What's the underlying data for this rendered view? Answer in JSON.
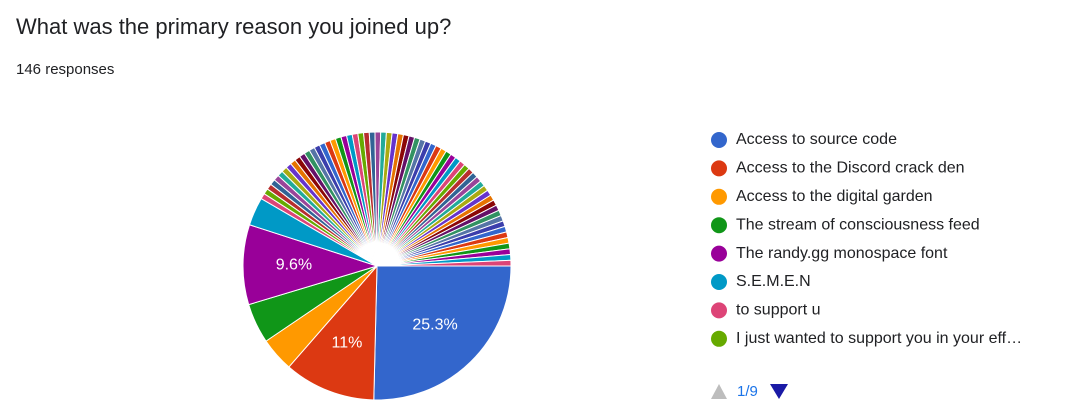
{
  "chart_data": {
    "type": "pie",
    "title": "What was the primary reason you joined up?",
    "subtitle": "146 responses",
    "categories": [
      "Access to source code",
      "Access to the Discord crack den",
      "Access to the digital garden",
      "The stream of consciousness feed",
      "The randy.gg monospace font",
      "S.E.M.E.N",
      "to support u",
      "I just wanted to support you in your eff…",
      null,
      null,
      null,
      null,
      null,
      null,
      null,
      null,
      null,
      null,
      null,
      null,
      null,
      null,
      null,
      null,
      null,
      null,
      null,
      null,
      null,
      null,
      null,
      null,
      null,
      null,
      null,
      null,
      null,
      null,
      null,
      null,
      null,
      null,
      null,
      null,
      null,
      null,
      null,
      null,
      null,
      null,
      null,
      null,
      null,
      null,
      null,
      null,
      null,
      null,
      null,
      null,
      null,
      null,
      null,
      null,
      null,
      null,
      null
    ],
    "values": [
      25.3,
      11,
      4.1,
      4.8,
      9.6,
      3.4,
      0.68,
      0.68,
      0.68,
      0.68,
      0.68,
      0.68,
      0.68,
      0.68,
      0.68,
      0.68,
      0.68,
      0.68,
      0.68,
      0.68,
      0.68,
      0.68,
      0.68,
      0.68,
      0.68,
      0.68,
      0.68,
      0.68,
      0.68,
      0.68,
      0.68,
      0.68,
      0.68,
      0.68,
      0.68,
      0.68,
      0.68,
      0.68,
      0.68,
      0.68,
      0.68,
      0.68,
      0.68,
      0.68,
      0.68,
      0.68,
      0.68,
      0.68,
      0.68,
      0.68,
      0.68,
      0.68,
      0.68,
      0.68,
      0.68,
      0.68,
      0.68,
      0.68,
      0.68,
      0.68,
      0.68,
      0.68,
      0.68,
      0.68,
      0.68,
      0.68,
      0.68
    ],
    "value_labels": [
      "25.3%",
      "11%",
      null,
      null,
      "9.6%",
      null,
      null,
      null,
      null,
      null,
      null,
      null,
      null,
      null,
      null,
      null,
      null,
      null,
      null,
      null,
      null,
      null,
      null,
      null,
      null,
      null,
      null,
      null,
      null,
      null,
      null,
      null,
      null,
      null,
      null,
      null,
      null,
      null,
      null,
      null,
      null,
      null,
      null,
      null,
      null,
      null,
      null,
      null,
      null,
      null,
      null,
      null,
      null,
      null,
      null,
      null,
      null,
      null,
      null,
      null,
      null,
      null,
      null,
      null,
      null,
      null,
      null
    ],
    "colors": [
      "#3366cc",
      "#dc3912",
      "#ff9900",
      "#109618",
      "#990099",
      "#0099c6",
      "#dd4477",
      "#66aa00",
      "#b82e2e",
      "#316395",
      "#994499",
      "#22aa99",
      "#aaaa11",
      "#6633cc",
      "#e67300",
      "#8b0707",
      "#651067",
      "#329262",
      "#5574a6",
      "#3b3eac"
    ],
    "legend_page": "1/9"
  }
}
